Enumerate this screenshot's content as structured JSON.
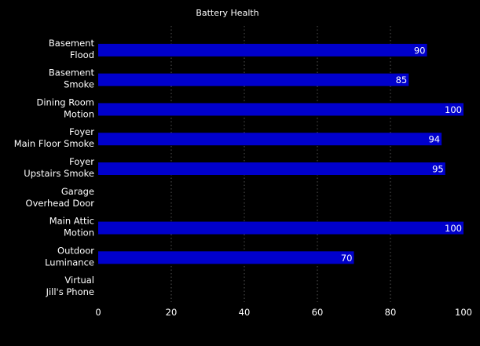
{
  "chart_data": {
    "type": "bar",
    "orientation": "horizontal",
    "title": "Battery Health",
    "xlabel": "",
    "ylabel": "",
    "xlim": [
      0,
      100
    ],
    "xticks": [
      "0",
      "20",
      "40",
      "60",
      "80",
      "100"
    ],
    "grid": "vertical dotted",
    "categories": [
      [
        "Basement",
        "Flood"
      ],
      [
        "Basement",
        "Smoke"
      ],
      [
        "Dining Room",
        "Motion"
      ],
      [
        "Foyer",
        "Main Floor Smoke"
      ],
      [
        "Foyer",
        "Upstairs Smoke"
      ],
      [
        "Garage",
        "Overhead Door"
      ],
      [
        "Main Attic",
        "Motion"
      ],
      [
        "Outdoor",
        "Luminance"
      ],
      [
        "Virtual",
        "Jill's Phone"
      ]
    ],
    "values": [
      90,
      85,
      100,
      94,
      95,
      null,
      100,
      70,
      null
    ],
    "data_labels": [
      "90",
      "85",
      "100",
      "94",
      "95",
      "",
      "100",
      "70",
      ""
    ],
    "bar_color": "#0000cc",
    "background_color": "#000000",
    "text_color": "#ffffff"
  }
}
